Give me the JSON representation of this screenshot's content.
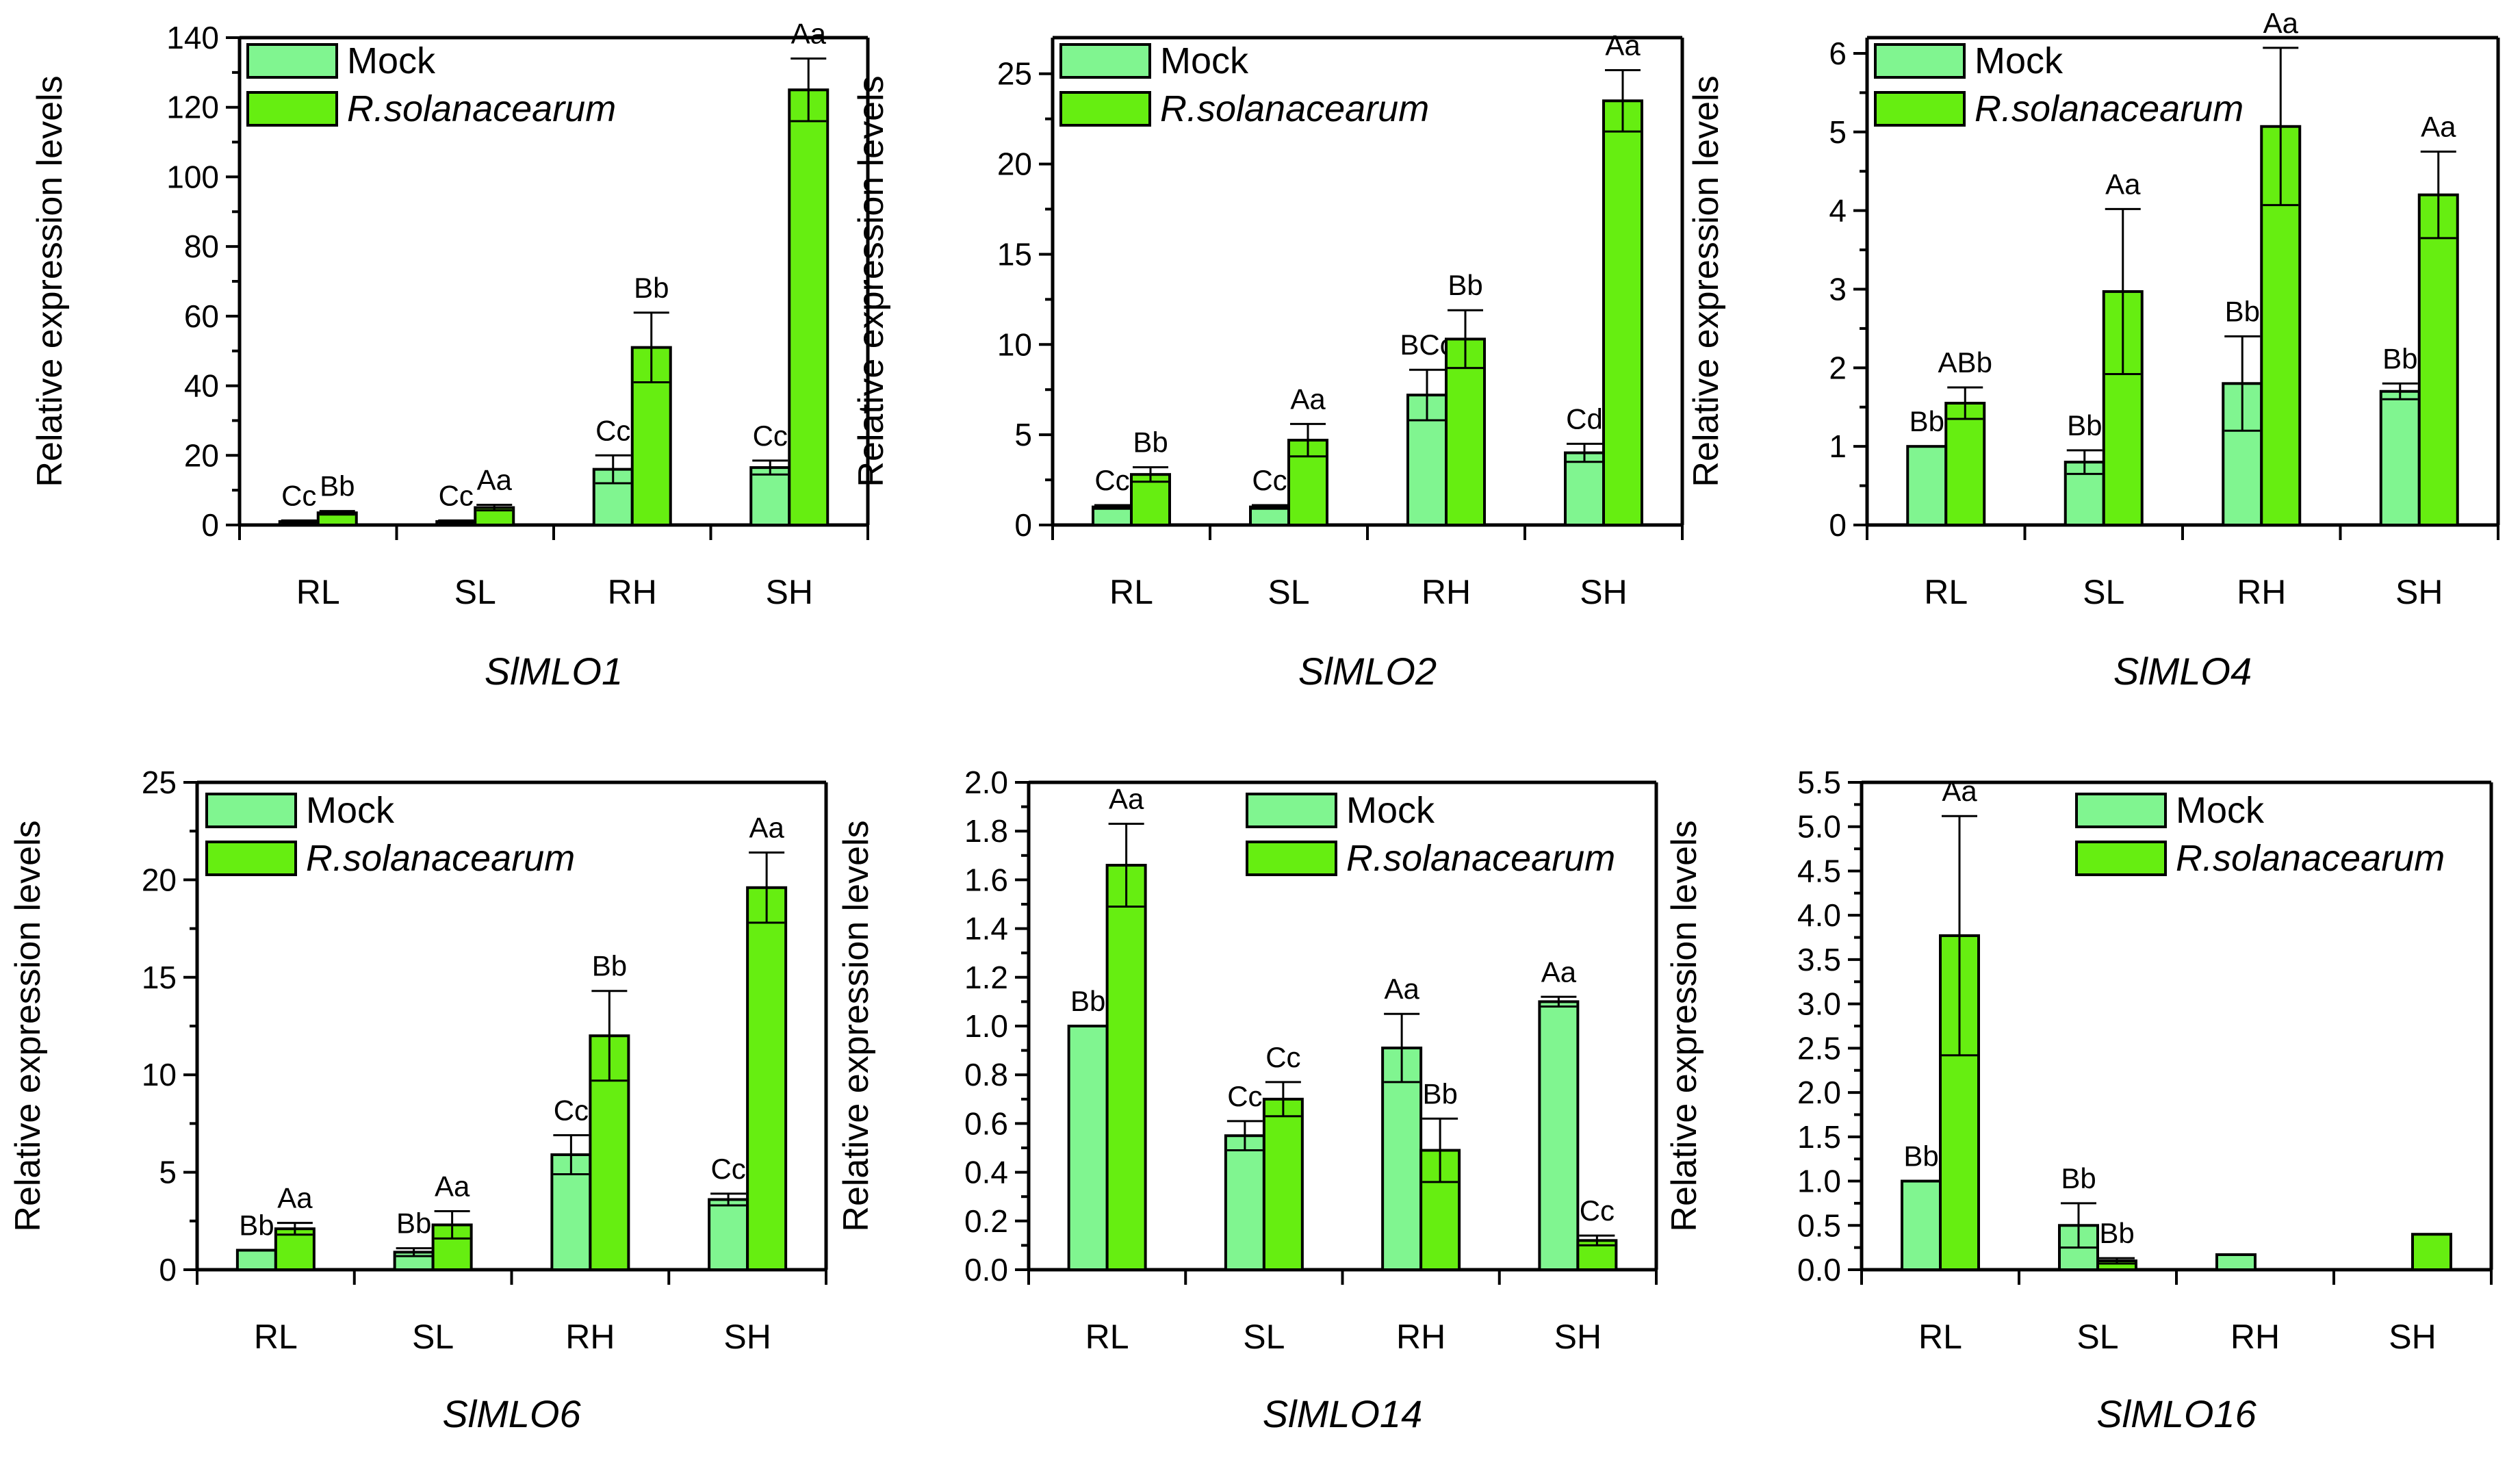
{
  "y_axis_label": "Relative expression levels",
  "legend": {
    "mock": "Mock",
    "treatment": "R.solanacearum"
  },
  "colors": {
    "mock": "#80f590",
    "treatment": "#66ee11",
    "axis": "#000000"
  },
  "chart_data": [
    {
      "type": "bar",
      "title": "SlMLO1",
      "ylabel": "Relative expression levels",
      "categories": [
        "RL",
        "SL",
        "RH",
        "SH"
      ],
      "ylim": [
        0,
        140
      ],
      "yticks": [
        0,
        20,
        40,
        60,
        80,
        100,
        120,
        140
      ],
      "ytick_labels": [
        "0",
        "20",
        "40",
        "60",
        "80",
        "100",
        "120",
        "140"
      ],
      "series": [
        {
          "name": "Mock",
          "values": [
            1,
            1,
            16,
            16.5
          ],
          "errors": [
            0.3,
            0.3,
            4,
            2
          ],
          "letters": [
            "Cc",
            "Cc",
            "Cc",
            "Cc"
          ]
        },
        {
          "name": "R.solanacearum",
          "values": [
            3.5,
            5,
            51,
            125
          ],
          "errors": [
            0.5,
            0.8,
            10,
            9
          ],
          "letters": [
            "Bb",
            "Aa",
            "Bb",
            "Aa"
          ]
        }
      ]
    },
    {
      "type": "bar",
      "title": "SlMLO2",
      "ylabel": "Relative expression levels",
      "categories": [
        "RL",
        "SL",
        "RH",
        "SH"
      ],
      "ylim": [
        0,
        27
      ],
      "yticks": [
        0,
        5,
        10,
        15,
        20,
        25
      ],
      "ytick_labels": [
        "0",
        "5",
        "10",
        "15",
        "20",
        "25"
      ],
      "series": [
        {
          "name": "Mock",
          "values": [
            1,
            1,
            7.2,
            4
          ],
          "errors": [
            0.1,
            0.1,
            1.4,
            0.5
          ],
          "letters": [
            "Cc",
            "Cc",
            "BCc",
            "Cd"
          ]
        },
        {
          "name": "R.solanacearum",
          "values": [
            2.8,
            4.7,
            10.3,
            23.5
          ],
          "errors": [
            0.4,
            0.9,
            1.6,
            1.7
          ],
          "letters": [
            "Bb",
            "Aa",
            "Bb",
            "Aa"
          ]
        }
      ]
    },
    {
      "type": "bar",
      "title": "SlMLO4",
      "ylabel": "Relative expression levels",
      "categories": [
        "RL",
        "SL",
        "RH",
        "SH"
      ],
      "ylim": [
        0,
        6.2
      ],
      "yticks": [
        0,
        1,
        2,
        3,
        4,
        5,
        6
      ],
      "ytick_labels": [
        "0",
        "1",
        "2",
        "3",
        "4",
        "5",
        "6"
      ],
      "series": [
        {
          "name": "Mock",
          "values": [
            1,
            0.8,
            1.8,
            1.7
          ],
          "errors": [
            0,
            0.15,
            0.6,
            0.1
          ],
          "letters": [
            "Bb",
            "Bb",
            "Bb",
            "Bb"
          ]
        },
        {
          "name": "R.solanacearum",
          "values": [
            1.55,
            2.97,
            5.07,
            4.2
          ],
          "errors": [
            0.2,
            1.05,
            1.0,
            0.55
          ],
          "letters": [
            "ABb",
            "Aa",
            "Aa",
            "Aa"
          ]
        }
      ]
    },
    {
      "type": "bar",
      "title": "SlMLO6",
      "ylabel": "Relative expression levels",
      "categories": [
        "RL",
        "SL",
        "RH",
        "SH"
      ],
      "ylim": [
        0,
        25
      ],
      "yticks": [
        0,
        5,
        10,
        15,
        20,
        25
      ],
      "ytick_labels": [
        "0",
        "5",
        "10",
        "15",
        "20",
        "25"
      ],
      "series": [
        {
          "name": "Mock",
          "values": [
            1,
            0.9,
            5.9,
            3.6
          ],
          "errors": [
            0,
            0.2,
            1.0,
            0.3
          ],
          "letters": [
            "Bb",
            "Bb",
            "Cc",
            "Cc"
          ]
        },
        {
          "name": "R.solanacearum",
          "values": [
            2.1,
            2.3,
            12,
            19.6
          ],
          "errors": [
            0.3,
            0.7,
            2.3,
            1.8
          ],
          "letters": [
            "Aa",
            "Aa",
            "Bb",
            "Aa"
          ]
        }
      ]
    },
    {
      "type": "bar",
      "title": "SlMLO14",
      "ylabel": "Relative expression levels",
      "categories": [
        "RL",
        "SL",
        "RH",
        "SH"
      ],
      "ylim": [
        0,
        2.0
      ],
      "yticks": [
        0,
        0.2,
        0.4,
        0.6,
        0.8,
        1.0,
        1.2,
        1.4,
        1.6,
        1.8,
        2.0
      ],
      "ytick_labels": [
        "0.0",
        "0.2",
        "0.4",
        "0.6",
        "0.8",
        "1.0",
        "1.2",
        "1.4",
        "1.6",
        "1.8",
        "2.0"
      ],
      "series": [
        {
          "name": "Mock",
          "values": [
            1.0,
            0.55,
            0.91,
            1.1
          ],
          "errors": [
            0,
            0.06,
            0.14,
            0.02
          ],
          "letters": [
            "Bb",
            "Cc",
            "Aa",
            "Aa"
          ]
        },
        {
          "name": "R.solanacearum",
          "values": [
            1.66,
            0.7,
            0.49,
            0.12
          ],
          "errors": [
            0.17,
            0.07,
            0.13,
            0.02
          ],
          "letters": [
            "Aa",
            "Cc",
            "Bb",
            "Cc"
          ]
        }
      ]
    },
    {
      "type": "bar",
      "title": "SlMLO16",
      "ylabel": "Relative expression levels",
      "categories": [
        "RL",
        "SL",
        "RH",
        "SH"
      ],
      "ylim": [
        0,
        5.5
      ],
      "yticks": [
        0,
        0.5,
        1.0,
        1.5,
        2.0,
        2.5,
        3.0,
        3.5,
        4.0,
        4.5,
        5.0,
        5.5
      ],
      "ytick_labels": [
        "0.0",
        "0.5",
        "1.0",
        "1.5",
        "2.0",
        "2.5",
        "3.0",
        "3.5",
        "4.0",
        "4.5",
        "5.0",
        "5.5"
      ],
      "series": [
        {
          "name": "Mock",
          "values": [
            1.0,
            0.5,
            0.17,
            0
          ],
          "errors": [
            0,
            0.25,
            0,
            0
          ],
          "letters": [
            "Bb",
            "Bb",
            "",
            ""
          ]
        },
        {
          "name": "R.solanacearum",
          "values": [
            3.77,
            0.1,
            0,
            0.4
          ],
          "errors": [
            1.35,
            0.03,
            0,
            0
          ],
          "letters": [
            "Aa",
            "Bb",
            "",
            ""
          ]
        }
      ]
    }
  ]
}
